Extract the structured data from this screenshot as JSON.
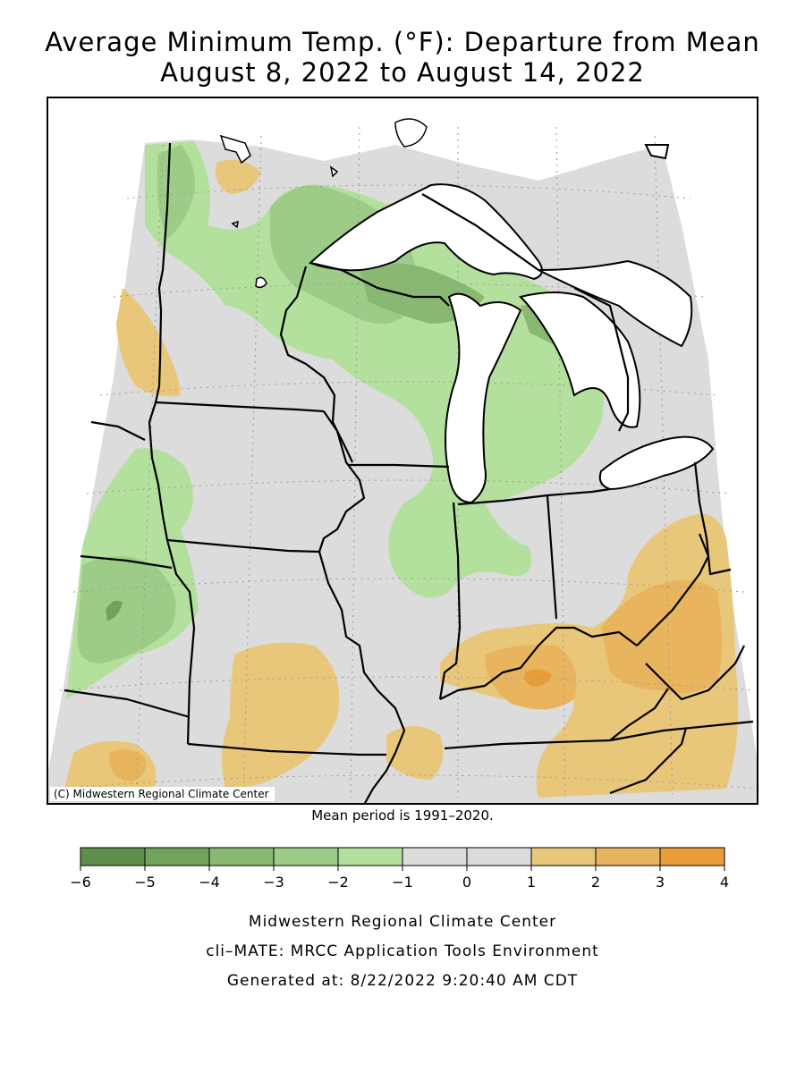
{
  "title": {
    "line1": "Average Minimum Temp. (°F): Departure from Mean",
    "line2": "August 8, 2022 to August 14, 2022"
  },
  "map": {
    "copyright": "(C) Midwestern Regional Climate Center",
    "land_color": "#dcdcdc",
    "water_color": "#ffffff"
  },
  "mean_period": "Mean period is 1991–2020.",
  "legend": {
    "bins": [
      {
        "from": -6,
        "to": -5,
        "color": "#5e8f4a"
      },
      {
        "from": -5,
        "to": -4,
        "color": "#72a35c"
      },
      {
        "from": -4,
        "to": -3,
        "color": "#89b873"
      },
      {
        "from": -3,
        "to": -2,
        "color": "#9ccc88"
      },
      {
        "from": -2,
        "to": -1,
        "color": "#b3e09c"
      },
      {
        "from": -1,
        "to": 0,
        "color": "#dcdcdc"
      },
      {
        "from": 0,
        "to": 1,
        "color": "#dcdcdc"
      },
      {
        "from": 1,
        "to": 2,
        "color": "#e9c77a"
      },
      {
        "from": 2,
        "to": 3,
        "color": "#e8b45e"
      },
      {
        "from": 3,
        "to": 4,
        "color": "#e89c3a"
      }
    ],
    "tick_labels": [
      "−6",
      "−5",
      "−4",
      "−3",
      "−2",
      "−1",
      "0",
      "1",
      "2",
      "3",
      "4"
    ]
  },
  "credits": {
    "org": "Midwestern Regional Climate Center",
    "tool": "cli–MATE: MRCC Application Tools Environment",
    "generated": "Generated at: 8/22/2022 9:20:40 AM CDT"
  }
}
